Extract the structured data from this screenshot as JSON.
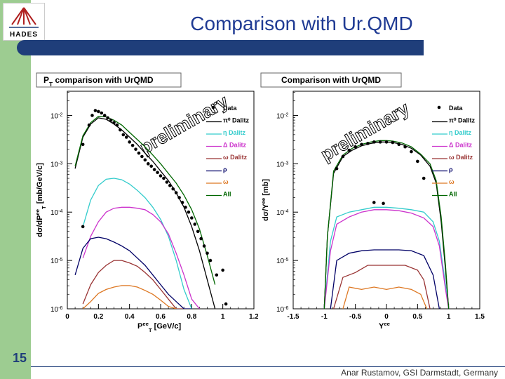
{
  "slide": {
    "title": "Comparison with Ur.QMD",
    "slide_number": "15",
    "footer": "Anar Rustamov, GSI Darmstadt, Germany",
    "logo_text": "HADES",
    "accent": "#1f3e7a",
    "band_color": "#9dcc91"
  },
  "chart_data": [
    {
      "type": "line",
      "title": "PT comparison with UrQMD",
      "title_main": "P",
      "title_sub": "T",
      "title_rest": " comparison with UrQMD",
      "watermark": "preliminary",
      "xlabel": "P_T^ee [GeV/c]",
      "xlabel_main": "P",
      "xlabel_sup": "ee",
      "xlabel_sub": "T",
      "xlabel_rest": " [GeV/c]",
      "ylabel": "dσ/dP_T^ee [mb/GeV/c]",
      "ylabel_main": "dσ/dP",
      "ylabel_sup": "ee",
      "ylabel_sub": "T",
      "ylabel_rest": " [mb/GeV/c]",
      "yscale": "log",
      "xlim": [
        0,
        1.2
      ],
      "ylim_log10": [
        -6,
        -1.5
      ],
      "x_ticks": [
        0,
        0.2,
        0.4,
        0.6,
        0.8,
        1,
        1.2
      ],
      "x_tick_labels": [
        "0",
        "0.2",
        "0.4",
        "0.6",
        "0.8",
        "1",
        "1.2"
      ],
      "y_ticks_log10": [
        -2,
        -3,
        -4,
        -5,
        -6
      ],
      "legend_position": "top-right",
      "legend": [
        {
          "label": "Data",
          "color": "#000000",
          "marker": "dot"
        },
        {
          "label": "π⁰ Dalitz",
          "color": "#000000",
          "marker": "line"
        },
        {
          "label": "η Dalitz",
          "color": "#33cccc",
          "marker": "line"
        },
        {
          "label": "Δ Dalitz",
          "color": "#cc33cc",
          "marker": "line"
        },
        {
          "label": "ω Dalitz",
          "color": "#993333",
          "marker": "line"
        },
        {
          "label": "ρ",
          "color": "#000066",
          "marker": "line"
        },
        {
          "label": "ω",
          "color": "#dd7722",
          "marker": "line"
        },
        {
          "label": "All",
          "color": "#006600",
          "marker": "line"
        }
      ],
      "data_points": {
        "x": [
          0.1,
          0.1,
          0.14,
          0.16,
          0.18,
          0.2,
          0.22,
          0.24,
          0.26,
          0.28,
          0.3,
          0.32,
          0.34,
          0.36,
          0.38,
          0.4,
          0.42,
          0.44,
          0.46,
          0.48,
          0.5,
          0.52,
          0.54,
          0.56,
          0.58,
          0.6,
          0.62,
          0.64,
          0.66,
          0.68,
          0.7,
          0.72,
          0.74,
          0.76,
          0.78,
          0.8,
          0.82,
          0.84,
          0.86,
          0.88,
          0.9,
          0.92,
          0.96,
          1.0,
          1.02
        ],
        "y_log10": [
          -4.3,
          -2.6,
          -2.2,
          -2.0,
          -1.9,
          -1.92,
          -1.95,
          -2.0,
          -2.05,
          -2.1,
          -2.15,
          -2.2,
          -2.3,
          -2.4,
          -2.45,
          -2.55,
          -2.62,
          -2.7,
          -2.78,
          -2.85,
          -2.92,
          -3.0,
          -3.05,
          -3.12,
          -3.18,
          -3.25,
          -3.3,
          -3.38,
          -3.45,
          -3.52,
          -3.6,
          -3.7,
          -3.8,
          -3.9,
          -4.0,
          -4.12,
          -4.25,
          -4.4,
          -4.55,
          -4.7,
          -4.85,
          -5.0,
          -5.3,
          -5.2,
          -5.9
        ]
      },
      "series": [
        {
          "name": "π⁰ Dalitz",
          "color": "#000000",
          "x": [
            0.05,
            0.1,
            0.15,
            0.2,
            0.25,
            0.3,
            0.35,
            0.4,
            0.45,
            0.5,
            0.55,
            0.6,
            0.65,
            0.7,
            0.75,
            0.8,
            0.85,
            0.9,
            0.95
          ],
          "y_log10": [
            -3.1,
            -2.45,
            -2.18,
            -2.05,
            -2.08,
            -2.18,
            -2.3,
            -2.45,
            -2.6,
            -2.78,
            -2.95,
            -3.15,
            -3.35,
            -3.6,
            -3.9,
            -4.3,
            -4.8,
            -5.4,
            -6.0
          ]
        },
        {
          "name": "η Dalitz",
          "color": "#33cccc",
          "x": [
            0.1,
            0.15,
            0.2,
            0.25,
            0.3,
            0.35,
            0.4,
            0.45,
            0.5,
            0.55,
            0.6,
            0.65,
            0.7,
            0.75,
            0.8
          ],
          "y_log10": [
            -4.3,
            -3.75,
            -3.45,
            -3.32,
            -3.3,
            -3.33,
            -3.42,
            -3.55,
            -3.7,
            -3.9,
            -4.15,
            -4.5,
            -5.0,
            -5.6,
            -6.0
          ]
        },
        {
          "name": "Δ Dalitz",
          "color": "#cc33cc",
          "x": [
            0.1,
            0.15,
            0.2,
            0.25,
            0.3,
            0.35,
            0.4,
            0.45,
            0.5,
            0.55,
            0.6,
            0.65,
            0.7,
            0.75,
            0.8,
            0.85
          ],
          "y_log10": [
            -4.95,
            -4.5,
            -4.2,
            -4.0,
            -3.92,
            -3.9,
            -3.9,
            -3.92,
            -3.95,
            -4.05,
            -4.2,
            -4.45,
            -4.85,
            -5.3,
            -5.8,
            -6.0
          ]
        },
        {
          "name": "ω Dalitz",
          "color": "#993333",
          "x": [
            0.1,
            0.15,
            0.2,
            0.25,
            0.3,
            0.35,
            0.4,
            0.45,
            0.5,
            0.55,
            0.6,
            0.65,
            0.7,
            0.75
          ],
          "y_log10": [
            -5.9,
            -5.5,
            -5.25,
            -5.1,
            -5.0,
            -5.0,
            -5.05,
            -5.12,
            -5.25,
            -5.4,
            -5.6,
            -5.8,
            -6.0,
            -6.0
          ]
        },
        {
          "name": "ρ",
          "color": "#000066",
          "x": [
            0.05,
            0.1,
            0.15,
            0.2,
            0.25,
            0.3,
            0.35,
            0.4,
            0.45,
            0.5,
            0.55,
            0.6,
            0.65,
            0.7,
            0.75,
            0.8
          ],
          "y_log10": [
            -5.3,
            -4.75,
            -4.55,
            -4.52,
            -4.55,
            -4.62,
            -4.7,
            -4.8,
            -4.95,
            -5.1,
            -5.3,
            -5.5,
            -5.7,
            -5.85,
            -6.0,
            -6.0
          ]
        },
        {
          "name": "ω",
          "color": "#dd7722",
          "x": [
            0.1,
            0.15,
            0.2,
            0.25,
            0.3,
            0.35,
            0.4,
            0.45,
            0.5,
            0.55,
            0.6,
            0.65,
            0.7
          ],
          "y_log10": [
            -6.0,
            -5.85,
            -5.68,
            -5.6,
            -5.55,
            -5.52,
            -5.52,
            -5.55,
            -5.62,
            -5.7,
            -5.82,
            -5.95,
            -6.0
          ]
        },
        {
          "name": "All",
          "color": "#006600",
          "x": [
            0.05,
            0.1,
            0.15,
            0.2,
            0.25,
            0.3,
            0.35,
            0.4,
            0.45,
            0.5,
            0.55,
            0.6,
            0.65,
            0.7,
            0.75,
            0.8,
            0.85,
            0.9,
            0.95
          ],
          "y_log10": [
            -3.05,
            -2.42,
            -2.15,
            -2.02,
            -2.03,
            -2.1,
            -2.2,
            -2.35,
            -2.5,
            -2.65,
            -2.82,
            -3.0,
            -3.2,
            -3.4,
            -3.65,
            -3.95,
            -4.35,
            -4.9,
            -5.5
          ]
        }
      ]
    },
    {
      "type": "line",
      "title": "Comparison with UrQMD",
      "watermark": "preliminary",
      "xlabel": "Y^ee",
      "xlabel_main": "Y",
      "xlabel_sup": "ee",
      "ylabel": "dσ/Y^ee [mb]",
      "ylabel_main": "dσ/Y",
      "ylabel_sup": "ee",
      "ylabel_rest": " [mb]",
      "yscale": "log",
      "xlim": [
        -1.5,
        1.5
      ],
      "ylim_log10": [
        -6,
        -1.5
      ],
      "x_ticks": [
        -1.5,
        -1,
        -0.5,
        0,
        0.5,
        1,
        1.5
      ],
      "x_tick_labels": [
        "-1.5",
        "-1",
        "-0.5",
        "0",
        "0.5",
        "1",
        "1.5"
      ],
      "y_ticks_log10": [
        -2,
        -3,
        -4,
        -5,
        -6
      ],
      "legend_position": "top-right",
      "legend": [
        {
          "label": "Data",
          "color": "#000000",
          "marker": "dot"
        },
        {
          "label": "π⁰ Dalitz",
          "color": "#000000",
          "marker": "line"
        },
        {
          "label": "η Dalitz",
          "color": "#33cccc",
          "marker": "line"
        },
        {
          "label": "Δ Dalitz",
          "color": "#cc33cc",
          "marker": "line"
        },
        {
          "label": "ω Dalitz",
          "color": "#993333",
          "marker": "line"
        },
        {
          "label": "ρ",
          "color": "#000066",
          "marker": "line"
        },
        {
          "label": "ω",
          "color": "#dd7722",
          "marker": "line"
        },
        {
          "label": "All",
          "color": "#006600",
          "marker": "line"
        }
      ],
      "data_points": {
        "x": [
          -0.8,
          -0.7,
          -0.6,
          -0.5,
          -0.4,
          -0.3,
          -0.2,
          -0.1,
          0,
          0.1,
          0.2,
          0.3,
          0.4,
          0.5,
          0.6,
          -0.2,
          -0.05
        ],
        "y_log10": [
          -3.1,
          -2.85,
          -2.72,
          -2.65,
          -2.6,
          -2.58,
          -2.55,
          -2.55,
          -2.55,
          -2.56,
          -2.6,
          -2.65,
          -2.75,
          -2.95,
          -3.3,
          -3.8,
          -3.82
        ]
      },
      "series": [
        {
          "name": "π⁰ Dalitz",
          "color": "#000000",
          "x": [
            -1.0,
            -0.95,
            -0.85,
            -0.7,
            -0.55,
            -0.4,
            -0.25,
            -0.1,
            0,
            0.1,
            0.25,
            0.4,
            0.55,
            0.7,
            0.8,
            0.88,
            0.95,
            1.0
          ],
          "y_log10": [
            -6.0,
            -4.5,
            -3.2,
            -2.85,
            -2.72,
            -2.63,
            -2.58,
            -2.55,
            -2.55,
            -2.56,
            -2.6,
            -2.68,
            -2.82,
            -3.05,
            -3.4,
            -4.2,
            -5.2,
            -6.0
          ]
        },
        {
          "name": "η Dalitz",
          "color": "#33cccc",
          "x": [
            -1.0,
            -0.9,
            -0.8,
            -0.6,
            -0.4,
            -0.2,
            0,
            0.2,
            0.4,
            0.6,
            0.75,
            0.85,
            0.95,
            1.0
          ],
          "y_log10": [
            -6.0,
            -4.6,
            -4.1,
            -4.0,
            -3.95,
            -3.9,
            -3.9,
            -3.92,
            -3.95,
            -4.0,
            -4.2,
            -4.6,
            -5.5,
            -6.0
          ]
        },
        {
          "name": "Δ Dalitz",
          "color": "#cc33cc",
          "x": [
            -1.0,
            -0.9,
            -0.8,
            -0.6,
            -0.4,
            -0.2,
            0,
            0.2,
            0.4,
            0.6,
            0.75,
            0.85,
            0.95,
            1.0
          ],
          "y_log10": [
            -6.0,
            -4.8,
            -4.25,
            -4.1,
            -4.0,
            -3.95,
            -3.95,
            -3.97,
            -4.02,
            -4.12,
            -4.3,
            -4.7,
            -5.6,
            -6.0
          ]
        },
        {
          "name": "ω Dalitz",
          "color": "#993333",
          "x": [
            -0.85,
            -0.7,
            -0.5,
            -0.3,
            -0.1,
            0.1,
            0.3,
            0.5,
            0.6,
            0.7
          ],
          "y_log10": [
            -6.0,
            -5.35,
            -5.25,
            -5.1,
            -5.1,
            -5.1,
            -5.1,
            -5.2,
            -5.4,
            -6.0
          ]
        },
        {
          "name": "ρ",
          "color": "#000066",
          "x": [
            -0.9,
            -0.8,
            -0.6,
            -0.4,
            -0.2,
            0,
            0.2,
            0.4,
            0.6,
            0.75,
            0.85
          ],
          "y_log10": [
            -6.0,
            -5.0,
            -4.85,
            -4.8,
            -4.78,
            -4.78,
            -4.78,
            -4.8,
            -4.9,
            -5.3,
            -6.0
          ]
        },
        {
          "name": "ω",
          "color": "#dd7722",
          "x": [
            -0.7,
            -0.6,
            -0.4,
            -0.2,
            0,
            0.2,
            0.4,
            0.55,
            0.65
          ],
          "y_log10": [
            -6.0,
            -5.55,
            -5.6,
            -5.55,
            -5.6,
            -5.55,
            -5.6,
            -5.7,
            -6.0
          ]
        },
        {
          "name": "All",
          "color": "#006600",
          "x": [
            -1.0,
            -0.95,
            -0.85,
            -0.7,
            -0.55,
            -0.4,
            -0.25,
            -0.1,
            0,
            0.1,
            0.25,
            0.4,
            0.55,
            0.7,
            0.8,
            0.88,
            0.95,
            1.0
          ],
          "y_log10": [
            -6.0,
            -4.5,
            -3.15,
            -2.82,
            -2.68,
            -2.6,
            -2.55,
            -2.52,
            -2.52,
            -2.53,
            -2.57,
            -2.65,
            -2.8,
            -3.0,
            -3.35,
            -4.1,
            -5.1,
            -6.0
          ]
        }
      ]
    }
  ]
}
